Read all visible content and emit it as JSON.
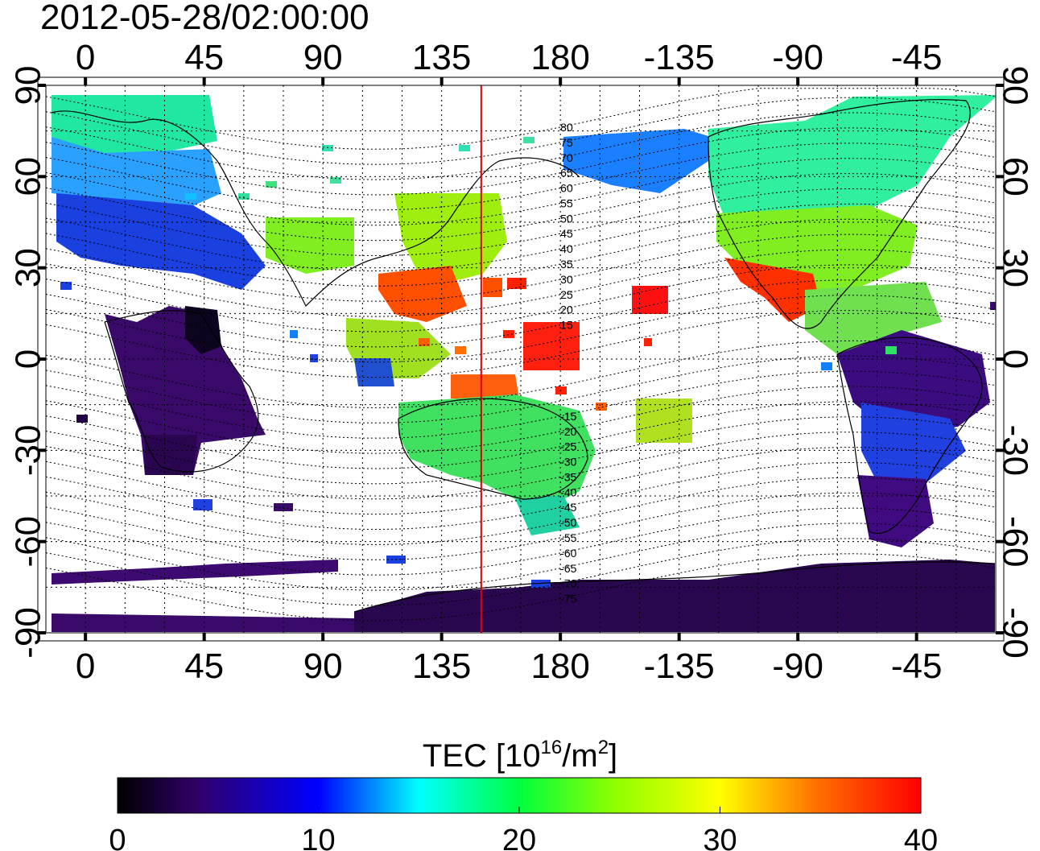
{
  "map": {
    "title": "2012-05-28/02:00:00",
    "projection": "equirectangular",
    "lon_ticks_top": [
      "0",
      "45",
      "90",
      "135",
      "180",
      "-135",
      "-90",
      "-45"
    ],
    "lon_ticks_bottom": [
      "0",
      "45",
      "90",
      "135",
      "180",
      "-135",
      "-90",
      "-45"
    ],
    "lat_ticks_left": [
      "90",
      "60",
      "30",
      "0",
      "-30",
      "-60",
      "-90"
    ],
    "lat_ticks_right": [
      "90",
      "60",
      "30",
      "0",
      "-30",
      "-60",
      "-90"
    ],
    "contour_labels": [
      "80",
      "75",
      "70",
      "65",
      "60",
      "55",
      "50",
      "45",
      "40",
      "35",
      "30",
      "25",
      "20",
      "15",
      "-15",
      "-20",
      "-25",
      "-30",
      "-35",
      "-40",
      "-45",
      "-50",
      "-55",
      "-60",
      "-65",
      "-70",
      "-75"
    ],
    "highlight_meridian_lon": 150,
    "highlight_color": "#e00000"
  },
  "colorbar": {
    "title_prefix": "TEC  [10",
    "title_sup1": "16",
    "title_mid": "/m",
    "title_sup2": "2",
    "title_suffix": "]",
    "ticks": [
      "0",
      "10",
      "20",
      "30",
      "40"
    ],
    "range": [
      0,
      40
    ],
    "colors": [
      "#000000",
      "#3a0080",
      "#0000ff",
      "#00ffff",
      "#00ff00",
      "#ffff00",
      "#ff8000",
      "#ff0000"
    ]
  }
}
